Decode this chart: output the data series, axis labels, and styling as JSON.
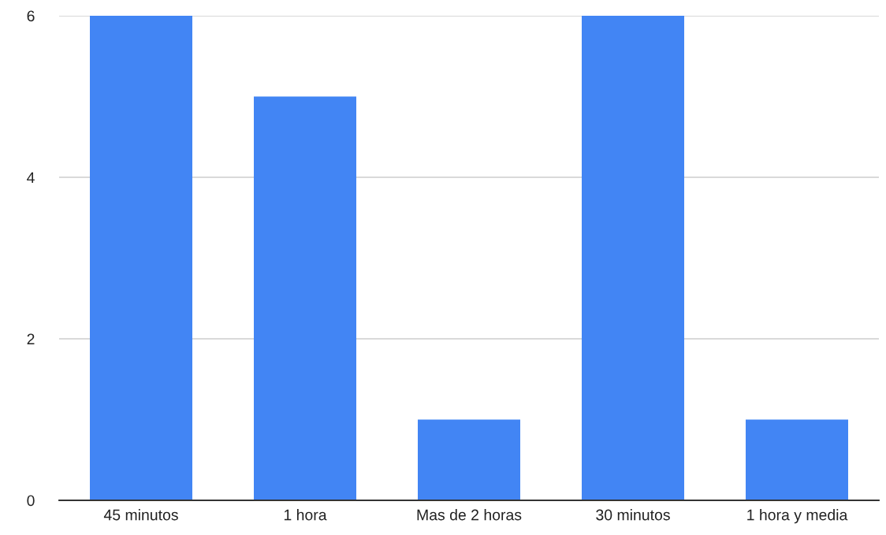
{
  "chart_data": {
    "type": "bar",
    "categories": [
      "45 minutos",
      "1 hora",
      "Mas de 2 horas",
      "30 minutos",
      "1 hora y media"
    ],
    "values": [
      6,
      5,
      1,
      6,
      1
    ],
    "color": "#4285f4",
    "ylim": [
      0,
      6
    ],
    "yticks": [
      0,
      2,
      4,
      6
    ],
    "grid": "y",
    "legend": false
  }
}
